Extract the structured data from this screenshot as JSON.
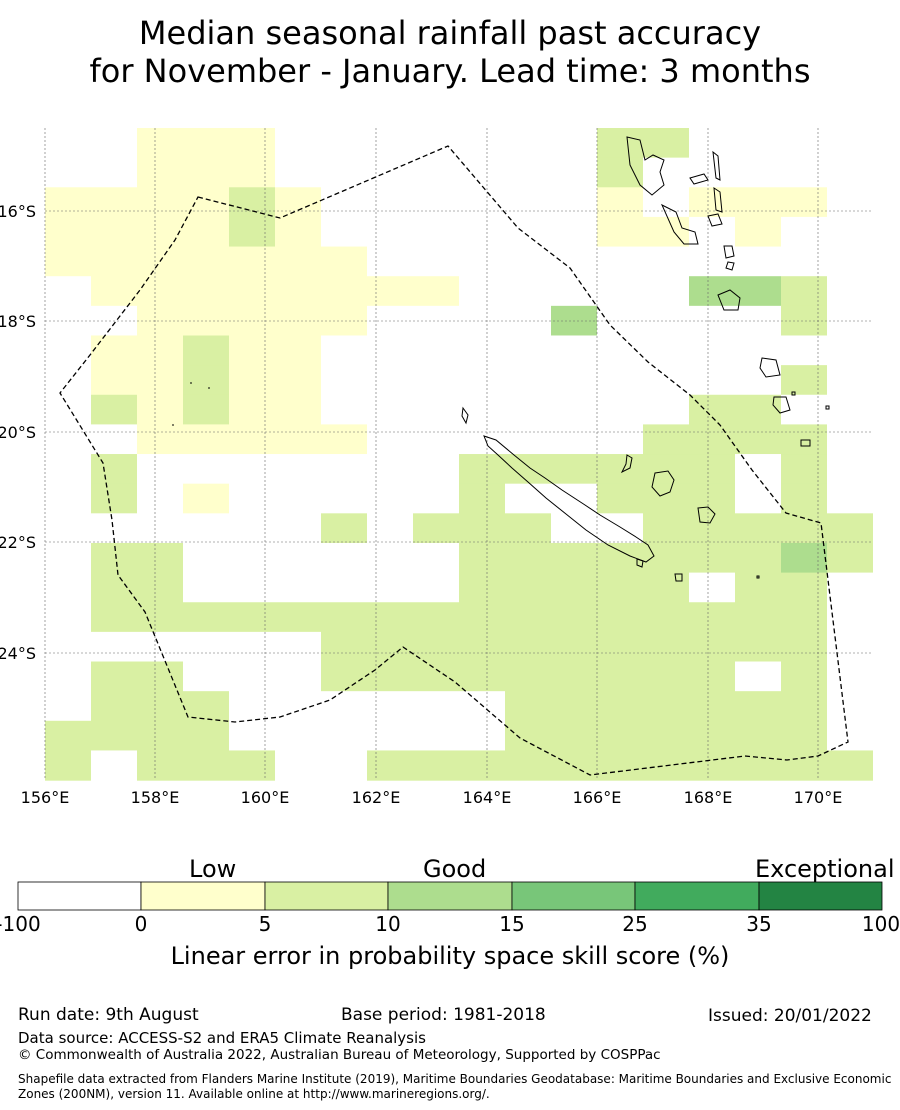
{
  "title": {
    "line1": "Median seasonal rainfall past accuracy",
    "line2": "for November - January. Lead time: 3 months"
  },
  "map": {
    "lon_labels": [
      "156°E",
      "158°E",
      "160°E",
      "162°E",
      "164°E",
      "166°E",
      "168°E",
      "170°E"
    ],
    "lat_labels": [
      "16°S",
      "18°S",
      "20°S",
      "22°S",
      "24°S"
    ],
    "grid_color": "#666666",
    "legend_colors": [
      "#ffffff",
      "#ffffcc",
      "#d9f0a3",
      "#addd8e",
      "#78c679",
      "#41ab5d",
      "#238443"
    ]
  },
  "colorbar": {
    "categories": [
      "Low",
      "Good",
      "Exceptional"
    ],
    "ticks": [
      "-100",
      "0",
      "5",
      "10",
      "15",
      "25",
      "35",
      "100"
    ],
    "caption": "Linear error in probability space skill score (%)"
  },
  "footer": {
    "run_date": "Run date: 9th August",
    "base_period": "Base period: 1981-2018",
    "issued": "Issued: 20/01/2022",
    "data_source": "Data source: ACCESS-S2 and ERA5 Climate Reanalysis",
    "copyright": "© Commonwealth of Australia 2022, Australian Bureau of Meteorology, Supported by COSPPac",
    "shapefile": "Shapefile data extracted from Flanders Marine Institute (2019), Maritime Boundaries Geodatabase: Maritime Boundaries and Exclusive Economic Zones (200NM), version 11. Available online at http://www.marineregions.org/."
  }
}
